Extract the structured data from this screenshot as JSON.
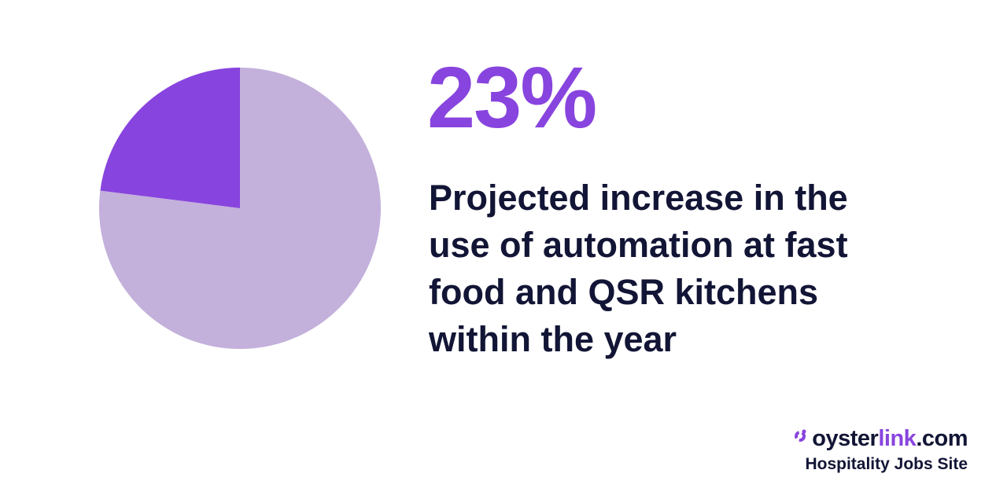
{
  "chart_data": {
    "type": "pie",
    "slices": [
      {
        "value": 23,
        "color": "#8844de"
      },
      {
        "value": 77,
        "color": "#c3b0db"
      }
    ]
  },
  "headline": {
    "stat": "23%",
    "caption": "Projected increase in the use of automation at fast food and QSR kitchens within the year"
  },
  "brand": {
    "name_a": "oyster",
    "name_b": "link",
    "name_c": ".com",
    "tagline": "Hospitality Jobs Site",
    "accent_color": "#8844de",
    "text_color": "#121535",
    "icon": "oysterlink-logo-icon"
  }
}
